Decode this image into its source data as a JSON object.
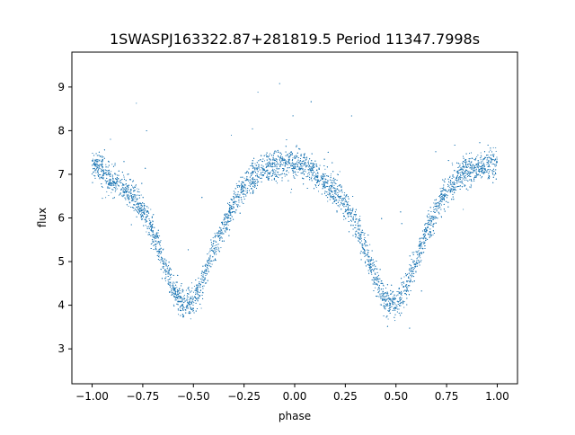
{
  "chart_data": {
    "type": "scatter",
    "title": "1SWASPJ163322.87+281819.5 Period 11347.7998s",
    "xlabel": "phase",
    "ylabel": "flux",
    "xlim": [
      -1.1,
      1.1
    ],
    "ylim": [
      2.2,
      9.8
    ],
    "x_ticks": [
      -1.0,
      -0.75,
      -0.5,
      -0.25,
      0.0,
      0.25,
      0.5,
      0.75,
      1.0
    ],
    "x_tick_labels": [
      "−1.00",
      "−0.75",
      "−0.50",
      "−0.25",
      "0.00",
      "0.25",
      "0.50",
      "0.75",
      "1.00"
    ],
    "y_ticks": [
      3,
      4,
      5,
      6,
      7,
      8,
      9
    ],
    "y_tick_labels": [
      "3",
      "4",
      "5",
      "6",
      "7",
      "8",
      "9"
    ],
    "grid": false,
    "legend": "none",
    "marker_color": "#1f77b4",
    "series": [
      {
        "x": [
          -1.0,
          -0.95,
          -0.9,
          -0.85,
          -0.8,
          -0.75,
          -0.7,
          -0.65,
          -0.6,
          -0.55,
          -0.5,
          -0.45,
          -0.4,
          -0.35,
          -0.3,
          -0.25,
          -0.2,
          -0.15,
          -0.1,
          -0.05,
          0.0,
          0.05,
          0.1,
          0.15,
          0.2,
          0.25,
          0.3,
          0.35,
          0.4,
          0.45,
          0.5,
          0.55,
          0.6,
          0.65,
          0.7,
          0.75,
          0.8,
          0.85,
          0.9,
          0.95,
          1.0
        ],
        "y": [
          7.2,
          7.1,
          6.9,
          6.7,
          6.5,
          6.2,
          5.7,
          5.0,
          4.4,
          4.05,
          4.05,
          4.6,
          5.3,
          5.8,
          6.3,
          6.7,
          6.95,
          7.1,
          7.2,
          7.25,
          7.25,
          7.2,
          7.0,
          6.8,
          6.6,
          6.3,
          5.9,
          5.3,
          4.6,
          4.1,
          4.05,
          4.4,
          5.0,
          5.7,
          6.2,
          6.6,
          6.9,
          7.05,
          7.15,
          7.2,
          7.25
        ]
      }
    ]
  }
}
